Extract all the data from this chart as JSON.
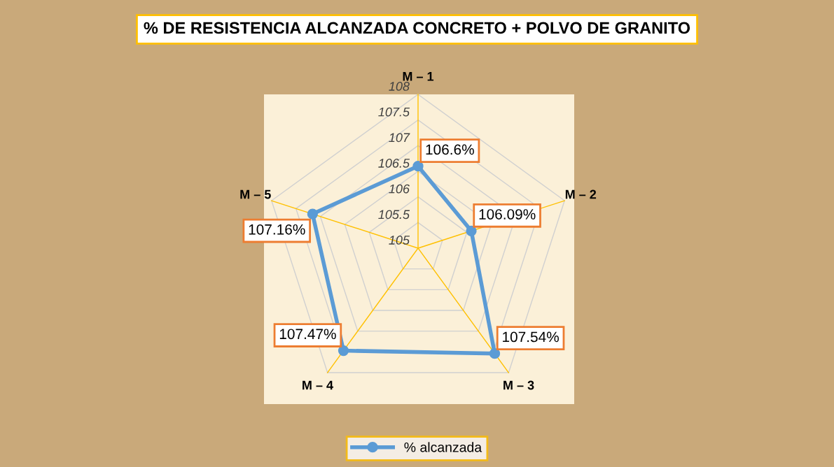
{
  "chart_data": {
    "type": "radar",
    "title": "% DE RESISTENCIA ALCANZADA CONCRETO + POLVO DE GRANITO",
    "categories": [
      "M – 1",
      "M – 2",
      "M – 3",
      "M – 4",
      "M – 5"
    ],
    "series": [
      {
        "name": "% alcanzada",
        "color": "#5b9bd5",
        "values": [
          106.6,
          106.09,
          107.54,
          107.47,
          107.16
        ],
        "value_labels": [
          "106.6%",
          "106.09%",
          "107.54%",
          "107.47%",
          "107.16%"
        ]
      }
    ],
    "ylim": [
      105,
      108
    ],
    "yticks": [
      105,
      105.5,
      106,
      106.5,
      107,
      107.5,
      108
    ],
    "marker": "circle",
    "legend": "bottom",
    "grid": true
  }
}
